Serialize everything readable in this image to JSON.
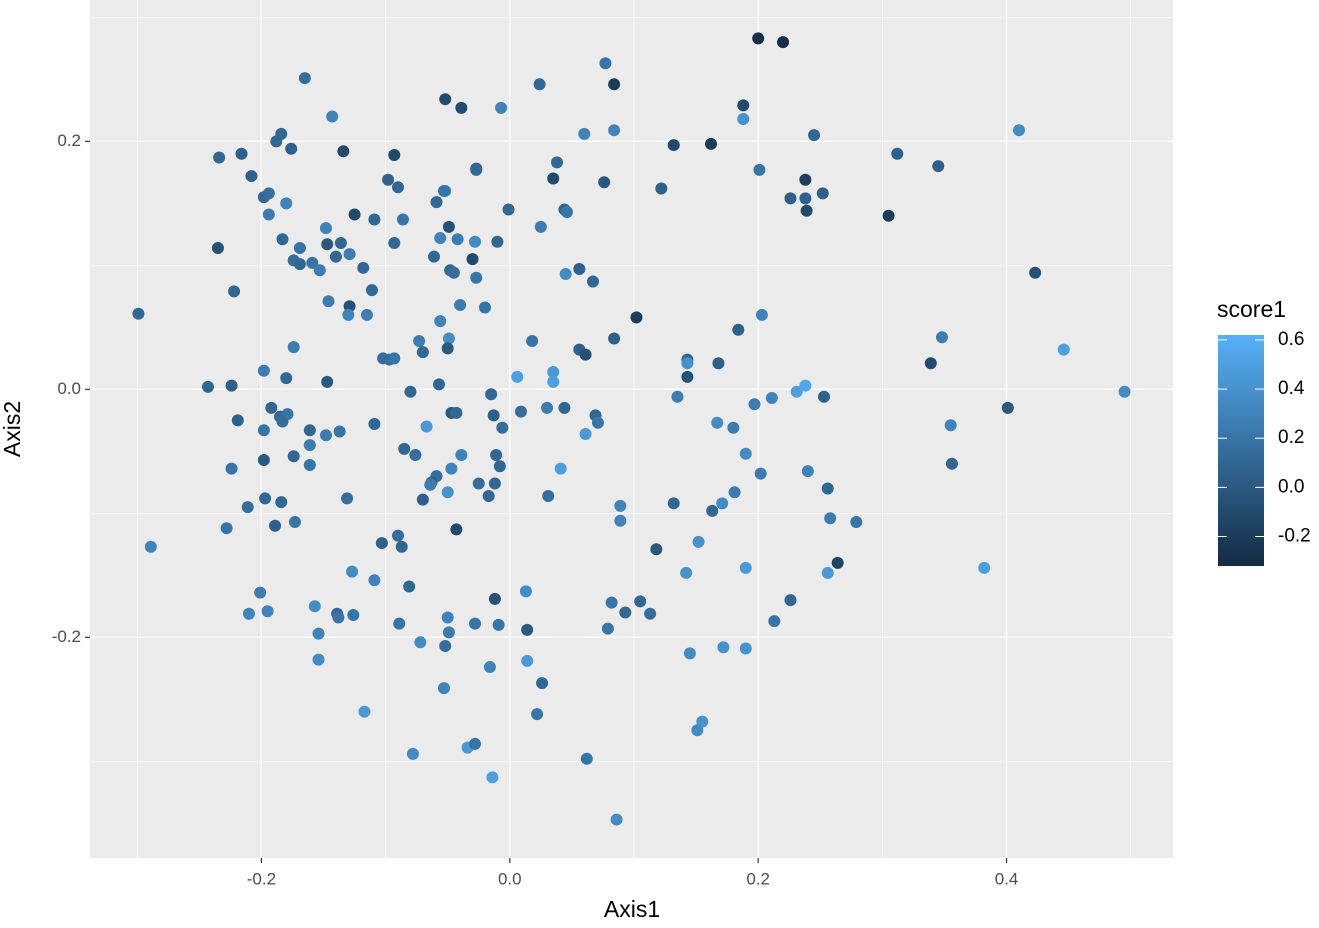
{
  "chart_data": {
    "type": "scatter",
    "x_label": "Axis1",
    "y_label": "Axis2",
    "xlim": [
      -0.338,
      0.534
    ],
    "ylim": [
      -0.378,
      0.314
    ],
    "xticks": [
      -0.2,
      {
        "value": 0,
        "label": "0.0"
      },
      0.2,
      0.4
    ],
    "yticks": [
      -0.2,
      {
        "value": 0,
        "label": "0.0"
      },
      0.2
    ],
    "x_minor_ticks": [
      -0.3,
      -0.1,
      0.1,
      0.3,
      0.5
    ],
    "y_minor_ticks": [
      -0.3,
      -0.1,
      0.1,
      0.3
    ],
    "grid": true,
    "color_scale": {
      "title": "score1",
      "low": "#132B43",
      "high": "#56B1F7",
      "lim": [
        -0.32,
        0.62
      ],
      "ticks": [
        -0.2,
        {
          "value": 0,
          "label": "0.0"
        },
        0.2,
        0.4,
        0.6
      ]
    },
    "x": [
      -0.299,
      -0.289,
      -0.165,
      -0.143,
      -0.234,
      -0.216,
      -0.208,
      -0.184,
      -0.188,
      -0.176,
      -0.134,
      -0.198,
      -0.194,
      -0.18,
      -0.194,
      -0.235,
      -0.183,
      -0.169,
      -0.174,
      -0.169,
      -0.159,
      -0.153,
      -0.148,
      -0.147,
      -0.136,
      -0.129,
      -0.14,
      -0.125,
      -0.109,
      -0.118,
      -0.111,
      -0.129,
      -0.146,
      -0.13,
      -0.115,
      -0.222,
      -0.243,
      -0.224,
      -0.198,
      -0.174,
      -0.18,
      -0.147,
      -0.219,
      -0.198,
      -0.192,
      -0.185,
      -0.179,
      -0.183,
      -0.161,
      -0.137,
      -0.148,
      -0.161,
      -0.174,
      -0.161,
      -0.198,
      -0.224,
      -0.197,
      -0.184,
      -0.211,
      -0.173,
      -0.189,
      -0.228,
      -0.131,
      -0.201,
      -0.21,
      -0.195,
      -0.157,
      -0.154,
      -0.154,
      -0.139,
      -0.138,
      -0.126,
      -0.127,
      -0.109,
      -0.117,
      -0.109,
      -0.102,
      -0.097,
      -0.093,
      -0.098,
      -0.093,
      -0.09,
      -0.086,
      -0.093,
      -0.073,
      -0.07,
      -0.08,
      -0.085,
      -0.076,
      -0.067,
      -0.103,
      -0.09,
      -0.087,
      -0.081,
      -0.089,
      -0.072,
      -0.078,
      -0.052,
      -0.053,
      -0.052,
      -0.039,
      -0.059,
      -0.049,
      -0.056,
      -0.042,
      -0.048,
      -0.045,
      -0.061,
      -0.03,
      -0.028,
      -0.04,
      -0.056,
      -0.049,
      -0.05,
      -0.057,
      -0.047,
      -0.043,
      -0.039,
      -0.047,
      -0.059,
      -0.063,
      -0.064,
      -0.07,
      -0.05,
      -0.043,
      -0.05,
      -0.049,
      -0.052,
      -0.053,
      -0.034,
      -0.028,
      -0.027,
      -0.027,
      -0.007,
      -0.01,
      -0.001,
      -0.02,
      -0.027,
      0.024,
      0.025,
      0.038,
      0.035,
      0.044,
      0.046,
      0.045,
      0.056,
      0.067,
      0.018,
      0.006,
      0.035,
      0.035,
      0.056,
      0.061,
      -0.015,
      -0.013,
      -0.006,
      -0.011,
      -0.008,
      -0.012,
      -0.025,
      -0.017,
      0.009,
      0.03,
      0.044,
      0.069,
      0.071,
      0.061,
      0.041,
      0.031,
      -0.012,
      -0.028,
      -0.009,
      0.013,
      0.014,
      0.014,
      -0.016,
      0.026,
      0.022,
      -0.014,
      0.062,
      0.086,
      0.077,
      0.084,
      0.084,
      0.06,
      0.076,
      0.122,
      0.132,
      0.162,
      0.188,
      0.188,
      0.2,
      0.22,
      0.201,
      0.245,
      0.203,
      0.184,
      0.226,
      0.238,
      0.238,
      0.239,
      0.252,
      0.305,
      0.312,
      0.345,
      0.41,
      0.423,
      0.348,
      0.339,
      0.446,
      0.495,
      0.401,
      0.355,
      0.356,
      0.382,
      0.102,
      0.084,
      0.143,
      0.143,
      0.143,
      0.168,
      0.135,
      0.231,
      0.238,
      0.197,
      0.211,
      0.253,
      0.167,
      0.18,
      0.19,
      0.202,
      0.24,
      0.256,
      0.181,
      0.171,
      0.132,
      0.163,
      0.089,
      0.089,
      0.258,
      0.279,
      0.118,
      0.152,
      0.264,
      0.142,
      0.19,
      0.256,
      0.082,
      0.105,
      0.093,
      0.113,
      0.079,
      0.226,
      0.213,
      0.172,
      0.19,
      0.145,
      0.155,
      0.151
    ],
    "values": [
      0.061,
      -0.127,
      0.251,
      0.22,
      0.187,
      0.19,
      0.172,
      0.206,
      0.2,
      0.194,
      0.192,
      0.155,
      0.158,
      0.15,
      0.141,
      0.114,
      0.121,
      0.114,
      0.104,
      0.101,
      0.102,
      0.096,
      0.13,
      0.117,
      0.118,
      0.109,
      0.107,
      0.141,
      0.137,
      0.098,
      0.08,
      0.067,
      0.071,
      0.06,
      0.06,
      0.079,
      0.002,
      0.003,
      0.015,
      0.034,
      0.009,
      0.006,
      -0.025,
      -0.033,
      -0.015,
      -0.022,
      -0.02,
      -0.026,
      -0.033,
      -0.034,
      -0.037,
      -0.045,
      -0.054,
      -0.061,
      -0.057,
      -0.064,
      -0.088,
      -0.091,
      -0.095,
      -0.107,
      -0.11,
      -0.112,
      -0.088,
      -0.164,
      -0.181,
      -0.179,
      -0.175,
      -0.197,
      -0.218,
      -0.181,
      -0.184,
      -0.182,
      -0.147,
      -0.154,
      -0.26,
      -0.028,
      0.025,
      0.024,
      0.025,
      0.169,
      0.189,
      0.163,
      0.137,
      0.118,
      0.039,
      0.03,
      -0.002,
      -0.048,
      -0.053,
      -0.03,
      -0.124,
      -0.118,
      -0.127,
      -0.159,
      -0.189,
      -0.204,
      -0.294,
      0.16,
      0.16,
      0.234,
      0.227,
      0.151,
      0.131,
      0.122,
      0.121,
      0.096,
      0.094,
      0.107,
      0.105,
      0.119,
      0.068,
      0.055,
      0.041,
      0.033,
      0.004,
      -0.019,
      -0.019,
      -0.053,
      -0.064,
      -0.07,
      -0.075,
      -0.077,
      -0.089,
      -0.083,
      -0.113,
      -0.184,
      -0.196,
      -0.207,
      -0.241,
      -0.289,
      -0.286,
      0.178,
      0.177,
      0.227,
      0.119,
      0.145,
      0.066,
      0.09,
      0.246,
      0.131,
      0.183,
      0.17,
      0.145,
      0.143,
      0.093,
      0.097,
      0.087,
      0.039,
      0.01,
      0.014,
      0.006,
      0.032,
      0.028,
      -0.004,
      -0.021,
      -0.031,
      -0.053,
      -0.062,
      -0.076,
      -0.076,
      -0.086,
      -0.018,
      -0.015,
      -0.015,
      -0.021,
      -0.027,
      -0.036,
      -0.064,
      -0.086,
      -0.169,
      -0.189,
      -0.19,
      -0.163,
      -0.194,
      -0.219,
      -0.224,
      -0.237,
      -0.262,
      -0.313,
      -0.298,
      -0.347,
      0.263,
      0.246,
      0.209,
      0.206,
      0.167,
      0.162,
      0.197,
      0.198,
      0.229,
      0.218,
      0.283,
      0.28,
      0.177,
      0.205,
      0.06,
      0.048,
      0.154,
      0.169,
      0.154,
      0.144,
      0.158,
      0.14,
      0.19,
      0.18,
      0.209,
      0.094,
      0.042,
      0.021,
      0.032,
      -0.002,
      -0.015,
      -0.029,
      -0.06,
      -0.144,
      0.058,
      0.041,
      0.024,
      0.01,
      0.021,
      0.021,
      -0.006,
      -0.002,
      0.003,
      -0.012,
      -0.007,
      -0.006,
      -0.027,
      -0.031,
      -0.052,
      -0.068,
      -0.066,
      -0.08,
      -0.083,
      -0.092,
      -0.092,
      -0.098,
      -0.094,
      -0.106,
      -0.104,
      -0.107,
      -0.129,
      -0.123,
      -0.14,
      -0.148,
      -0.144,
      -0.148,
      -0.172,
      -0.171,
      -0.18,
      -0.181,
      -0.193,
      -0.17,
      -0.187,
      -0.208,
      -0.209,
      -0.213,
      -0.268,
      -0.275
    ],
    "score1": [
      0.1,
      0.3,
      0.15,
      0.3,
      0.1,
      0.05,
      0.05,
      0.1,
      0.1,
      0.05,
      -0.1,
      0.1,
      0.15,
      0.3,
      0.25,
      -0.05,
      0.1,
      0.2,
      0.15,
      0.1,
      0.2,
      0.25,
      0.3,
      0.0,
      0.1,
      0.25,
      0.1,
      -0.1,
      0.1,
      0.1,
      0.1,
      -0.05,
      0.25,
      0.3,
      0.25,
      0.1,
      0.1,
      0.05,
      0.25,
      0.25,
      0.1,
      0.0,
      0.05,
      0.2,
      0.1,
      0.1,
      0.2,
      0.15,
      0.1,
      0.2,
      0.25,
      0.25,
      0.1,
      0.2,
      0.0,
      0.2,
      0.1,
      0.1,
      0.15,
      0.2,
      0.05,
      0.2,
      0.15,
      0.25,
      0.3,
      0.3,
      0.35,
      0.3,
      0.35,
      0.1,
      0.2,
      0.2,
      0.35,
      0.3,
      0.45,
      0.1,
      0.15,
      0.15,
      0.2,
      0.05,
      -0.1,
      0.1,
      0.2,
      0.1,
      0.25,
      0.1,
      0.1,
      0.1,
      0.15,
      0.45,
      0.05,
      0.15,
      0.1,
      0.1,
      0.2,
      0.35,
      0.35,
      0.35,
      0.2,
      -0.1,
      -0.1,
      0.1,
      -0.05,
      0.3,
      0.25,
      0.1,
      0.15,
      0.1,
      -0.1,
      0.35,
      0.25,
      0.3,
      0.35,
      0.0,
      0.1,
      0.0,
      0.1,
      0.3,
      0.3,
      0.15,
      0.1,
      0.25,
      0.05,
      0.4,
      -0.1,
      0.3,
      0.25,
      0.15,
      0.3,
      0.45,
      0.2,
      0.05,
      0.1,
      0.3,
      0.1,
      0.1,
      0.2,
      0.2,
      0.1,
      0.25,
      0.1,
      -0.1,
      0.1,
      0.2,
      0.35,
      0.05,
      0.1,
      0.2,
      0.5,
      0.45,
      0.5,
      0.05,
      -0.05,
      0.1,
      0.05,
      0.15,
      0.1,
      0.1,
      0.1,
      0.15,
      0.1,
      0.15,
      0.25,
      0.1,
      0.1,
      0.2,
      0.45,
      0.5,
      0.15,
      -0.05,
      0.2,
      0.2,
      0.35,
      0.0,
      0.45,
      0.3,
      0.1,
      0.2,
      0.5,
      0.2,
      0.35,
      0.2,
      -0.2,
      0.3,
      0.3,
      0.0,
      0.05,
      -0.1,
      -0.2,
      -0.1,
      0.4,
      -0.3,
      -0.3,
      0.2,
      0.1,
      0.3,
      0.05,
      0.05,
      -0.2,
      0.05,
      -0.1,
      0.05,
      -0.2,
      0.05,
      0.05,
      0.35,
      -0.05,
      0.25,
      -0.1,
      0.5,
      0.35,
      0.0,
      0.3,
      0.1,
      0.5,
      -0.2,
      0.05,
      0.1,
      -0.05,
      0.4,
      0.05,
      0.25,
      0.5,
      0.55,
      0.25,
      0.3,
      0.05,
      0.35,
      0.25,
      0.35,
      0.25,
      0.3,
      0.1,
      0.25,
      0.35,
      0.1,
      0.1,
      0.3,
      0.3,
      0.25,
      0.2,
      0.0,
      0.4,
      -0.15,
      0.4,
      0.45,
      0.45,
      0.2,
      0.1,
      0.1,
      0.15,
      0.2,
      0.1,
      0.2,
      0.4,
      0.4,
      0.35,
      0.4,
      0.35
    ]
  }
}
